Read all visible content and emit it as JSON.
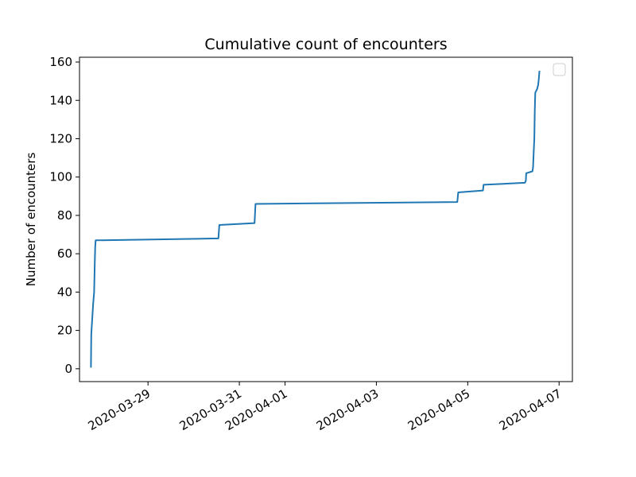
{
  "chart_data": {
    "type": "line",
    "title": "Cumulative count of encounters",
    "xlabel": "",
    "ylabel": "Number of encounters",
    "x_ticks": [
      "2020-03-29",
      "2020-03-31",
      "2020-04-01",
      "2020-04-03",
      "2020-04-05",
      "2020-04-07"
    ],
    "y_ticks": [
      "0",
      "20",
      "40",
      "60",
      "80",
      "100",
      "120",
      "140",
      "160"
    ],
    "xlim": [
      "2020-03-27 12:00",
      "2020-04-07 07:00"
    ],
    "ylim": [
      -6.7,
      162.5
    ],
    "grid": false,
    "legend": {
      "position": "top-right",
      "entries": []
    },
    "series": [
      {
        "color": "#1f77b4",
        "points": [
          [
            "2020-03-27 18:00",
            1
          ],
          [
            "2020-03-27 18:10",
            18
          ],
          [
            "2020-03-27 18:40",
            26
          ],
          [
            "2020-03-27 19:10",
            34
          ],
          [
            "2020-03-27 19:40",
            40
          ],
          [
            "2020-03-27 20:00",
            55
          ],
          [
            "2020-03-27 20:15",
            63
          ],
          [
            "2020-03-27 20:30",
            67
          ],
          [
            "2020-03-30 13:00",
            68
          ],
          [
            "2020-03-30 13:30",
            75
          ],
          [
            "2020-03-31 08:00",
            76
          ],
          [
            "2020-03-31 08:30",
            86
          ],
          [
            "2020-04-04 18:30",
            87
          ],
          [
            "2020-04-04 19:00",
            92
          ],
          [
            "2020-04-05 08:00",
            93
          ],
          [
            "2020-04-05 08:20",
            96
          ],
          [
            "2020-04-06 06:00",
            97
          ],
          [
            "2020-04-06 06:30",
            98
          ],
          [
            "2020-04-06 06:45",
            102
          ],
          [
            "2020-04-06 10:00",
            103
          ],
          [
            "2020-04-06 10:20",
            105
          ],
          [
            "2020-04-06 10:40",
            113
          ],
          [
            "2020-04-06 11:00",
            120
          ],
          [
            "2020-04-06 11:15",
            135
          ],
          [
            "2020-04-06 11:30",
            144
          ],
          [
            "2020-04-06 12:30",
            146
          ],
          [
            "2020-04-06 13:00",
            148
          ],
          [
            "2020-04-06 13:20",
            151
          ],
          [
            "2020-04-06 13:40",
            155
          ]
        ]
      }
    ]
  }
}
